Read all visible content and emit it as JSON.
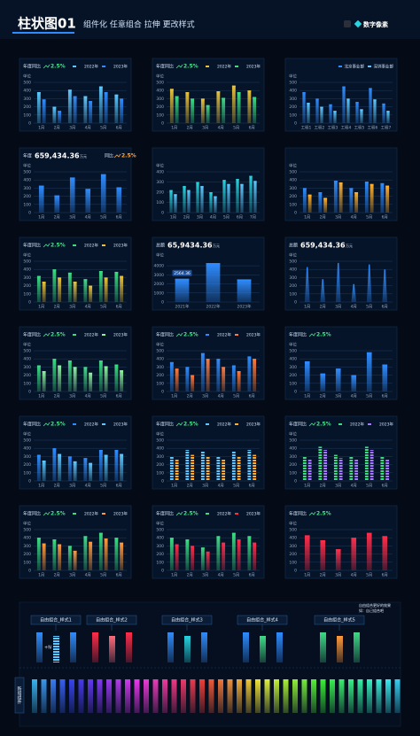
{
  "header": {
    "title": "柱状图01",
    "subtitle": "组件化 任意组合 拉伸 更改样式",
    "brand": "数字像素"
  },
  "chart_data": [
    {
      "type": "bar",
      "stat_label": "年度同比",
      "stat_value": "2.5%",
      "y_label": "单位",
      "categories": [
        "1月",
        "2月",
        "3月",
        "4月",
        "5月",
        "6月"
      ],
      "series": [
        {
          "name": "2022年",
          "color": "#5cc8ff",
          "values": [
            380,
            200,
            410,
            330,
            450,
            350
          ]
        },
        {
          "name": "2023年",
          "color": "#2f8cff",
          "values": [
            290,
            150,
            330,
            270,
            380,
            300
          ]
        }
      ],
      "ylim": [
        0,
        500
      ],
      "yticks": [
        0,
        100,
        200,
        300,
        400,
        500
      ]
    },
    {
      "type": "bar",
      "stat_label": "年度同比",
      "stat_value": "2.5%",
      "y_label": "单位",
      "categories": [
        "1月",
        "2月",
        "3月",
        "4月",
        "5月",
        "6月"
      ],
      "series": [
        {
          "name": "2022年",
          "color": "#e8c33a",
          "values": [
            420,
            380,
            300,
            390,
            460,
            400
          ]
        },
        {
          "name": "2023年",
          "color": "#3ddc84",
          "values": [
            330,
            300,
            220,
            310,
            380,
            320
          ]
        }
      ],
      "ylim": [
        0,
        500
      ],
      "yticks": [
        0,
        100,
        200,
        300,
        400,
        500
      ]
    },
    {
      "type": "bar",
      "y_label": "单位",
      "categories": [
        "工程1",
        "工程2",
        "工程3",
        "工程4",
        "工程5",
        "工程6",
        "工程7"
      ],
      "series": [
        {
          "name": "北京事业部",
          "color": "#2f8cff",
          "values": [
            380,
            300,
            230,
            450,
            260,
            430,
            240
          ]
        },
        {
          "name": "深圳事业部",
          "color": "#5cc8ff",
          "values": [
            250,
            200,
            150,
            300,
            170,
            290,
            150
          ]
        }
      ],
      "ylim": [
        0,
        500
      ],
      "yticks": [
        0,
        100,
        200,
        300,
        400,
        500
      ]
    },
    {
      "type": "bar",
      "stat_label": "年度",
      "total": "659,434.36",
      "unit": "万元",
      "change_label": "同比",
      "change": "2.5%",
      "y_label": "单位",
      "categories": [
        "1月",
        "2月",
        "3月",
        "4月",
        "5月",
        "6月"
      ],
      "series": [
        {
          "color": "#2f8cff",
          "values": [
            330,
            210,
            430,
            290,
            470,
            310
          ]
        }
      ],
      "ylim": [
        0,
        500
      ],
      "yticks": [
        0,
        100,
        200,
        300,
        400,
        500
      ]
    },
    {
      "type": "bar",
      "y_label": "单位",
      "categories": [
        "1月",
        "2月",
        "3月",
        "4月",
        "5月",
        "6月",
        "7月"
      ],
      "series": [
        {
          "color": "#27d4e0",
          "values": [
            220,
            260,
            300,
            200,
            320,
            330,
            360
          ]
        },
        {
          "color": "#5cc8ff",
          "values": [
            180,
            220,
            260,
            160,
            280,
            280,
            310
          ]
        }
      ],
      "ylim": [
        0,
        400
      ],
      "yticks": [
        0,
        100,
        200,
        300,
        400
      ]
    },
    {
      "type": "bar",
      "y_label": "单位",
      "categories": [
        "1月",
        "2月",
        "3月",
        "4月",
        "5月",
        "6月"
      ],
      "series": [
        {
          "color": "#2f8cff",
          "values": [
            300,
            250,
            390,
            300,
            380,
            360
          ]
        },
        {
          "color": "#ffb02e",
          "values": [
            220,
            180,
            370,
            250,
            350,
            330
          ]
        }
      ],
      "ylim": [
        0,
        500
      ],
      "yticks": [
        0,
        100,
        200,
        300,
        400,
        500
      ]
    },
    {
      "type": "bar",
      "stat_label": "年度同比",
      "stat_value": "2.5%",
      "y_label": "单位",
      "categories": [
        "1月",
        "2月",
        "3月",
        "4月",
        "5月",
        "6月"
      ],
      "series": [
        {
          "name": "2022年",
          "color": "#3ddc84",
          "values": [
            320,
            400,
            360,
            280,
            380,
            370
          ]
        },
        {
          "name": "2023年",
          "color": "#e8c33a",
          "values": [
            250,
            300,
            250,
            200,
            300,
            320
          ]
        }
      ],
      "ylim": [
        0,
        500
      ],
      "yticks": [
        0,
        100,
        200,
        300,
        400,
        500
      ]
    },
    {
      "type": "bar",
      "style": "block",
      "stat_label": "总额",
      "total": "65,9434.36",
      "unit": "万元",
      "y_label": "单位",
      "annotation": "2564.36",
      "categories": [
        "2021年",
        "2022年",
        "2023年"
      ],
      "series": [
        {
          "color": "#2f8cff",
          "values": [
            2564.36,
            4300,
            2500
          ]
        }
      ],
      "ylim": [
        0,
        4500
      ],
      "yticks": [
        0,
        1000,
        2000,
        3000,
        4000
      ]
    },
    {
      "type": "bar",
      "style": "cone",
      "stat_label": "总额",
      "total": "659,434.36",
      "unit": "万元",
      "y_label": "单位",
      "categories": [
        "1月",
        "2月",
        "3月",
        "4月",
        "5月",
        "6月"
      ],
      "series": [
        {
          "color": "#2f8cff",
          "values": [
            430,
            280,
            480,
            220,
            460,
            400
          ]
        }
      ],
      "ylim": [
        0,
        500
      ],
      "yticks": [
        0,
        100,
        200,
        300,
        400,
        500
      ]
    },
    {
      "type": "bar",
      "stat_label": "年度同比",
      "stat_value": "2.5%",
      "y_label": "单位",
      "categories": [
        "1月",
        "2月",
        "3月",
        "4月",
        "5月",
        "6月"
      ],
      "series": [
        {
          "name": "2022年",
          "color": "#3ddc84",
          "values": [
            320,
            400,
            380,
            300,
            380,
            330
          ]
        },
        {
          "name": "2023年",
          "color": "#8ef0a0",
          "values": [
            250,
            320,
            300,
            230,
            310,
            260
          ]
        }
      ],
      "ylim": [
        0,
        500
      ],
      "yticks": [
        0,
        100,
        200,
        300,
        400,
        500
      ]
    },
    {
      "type": "bar",
      "stat_label": "年度同比",
      "stat_value": "2.5%",
      "y_label": "单位",
      "categories": [
        "1月",
        "2月",
        "3月",
        "4月",
        "5月",
        "6月"
      ],
      "series": [
        {
          "name": "2022年",
          "color": "#2f8cff",
          "values": [
            360,
            300,
            470,
            400,
            320,
            430
          ]
        },
        {
          "name": "2023年",
          "color": "#ff7a3c",
          "values": [
            280,
            200,
            400,
            300,
            250,
            400
          ]
        }
      ],
      "ylim": [
        0,
        500
      ],
      "yticks": [
        0,
        100,
        200,
        300,
        400,
        500
      ]
    },
    {
      "type": "bar",
      "stat_label": "年度同比",
      "stat_value": "2.5%",
      "y_label": "单位",
      "categories": [
        "1月",
        "2月",
        "3月",
        "4月",
        "5月",
        "6月"
      ],
      "series": [
        {
          "color": "#2f8cff",
          "values": [
            370,
            220,
            280,
            200,
            480,
            330
          ]
        }
      ],
      "ylim": [
        0,
        500
      ],
      "yticks": [
        0,
        100,
        200,
        300,
        400,
        500
      ]
    },
    {
      "type": "bar",
      "stat_label": "年度同比",
      "stat_value": "2.5%",
      "y_label": "单位",
      "categories": [
        "1月",
        "2月",
        "3月",
        "4月",
        "5月",
        "6月"
      ],
      "series": [
        {
          "name": "2022年",
          "color": "#2f8cff",
          "values": [
            320,
            400,
            300,
            280,
            380,
            380
          ]
        },
        {
          "name": "2023年",
          "color": "#5cc8ff",
          "values": [
            250,
            330,
            240,
            220,
            320,
            330
          ]
        }
      ],
      "ylim": [
        0,
        500
      ],
      "yticks": [
        0,
        100,
        200,
        300,
        400,
        500
      ]
    },
    {
      "type": "bar",
      "style": "segmented",
      "stat_label": "年度同比",
      "stat_value": "2.5%",
      "y_label": "单位",
      "categories": [
        "1月",
        "2月",
        "3月",
        "4月",
        "5月",
        "6月"
      ],
      "series": [
        {
          "name": "2022年",
          "color": "#5cc8ff",
          "values": [
            300,
            380,
            360,
            300,
            360,
            380
          ]
        },
        {
          "name": "2023年",
          "color": "#ffb02e",
          "values": [
            260,
            320,
            300,
            260,
            300,
            320
          ]
        }
      ],
      "ylim": [
        0,
        500
      ],
      "yticks": [
        0,
        100,
        200,
        300,
        400,
        500
      ]
    },
    {
      "type": "bar",
      "style": "segmented",
      "stat_label": "年度同比",
      "stat_value": "2.5%",
      "y_label": "单位",
      "categories": [
        "1月",
        "2月",
        "3月",
        "4月",
        "5月",
        "6月"
      ],
      "series": [
        {
          "name": "2022年",
          "color": "#3ddc84",
          "values": [
            300,
            420,
            320,
            300,
            420,
            300
          ]
        },
        {
          "name": "2023年",
          "color": "#a77bff",
          "values": [
            260,
            380,
            280,
            260,
            380,
            260
          ]
        }
      ],
      "ylim": [
        0,
        500
      ],
      "yticks": [
        0,
        100,
        200,
        300,
        400,
        500
      ]
    },
    {
      "type": "bar",
      "stat_label": "年度同比",
      "stat_value": "2.5%",
      "y_label": "单位",
      "categories": [
        "1月",
        "2月",
        "3月",
        "4月",
        "5月",
        "6月"
      ],
      "series": [
        {
          "name": "2022年",
          "color": "#3ddc84",
          "values": [
            400,
            380,
            300,
            420,
            460,
            400
          ]
        },
        {
          "name": "2023年",
          "color": "#ff9a3c",
          "values": [
            330,
            320,
            240,
            350,
            390,
            340
          ]
        }
      ],
      "ylim": [
        0,
        500
      ],
      "yticks": [
        0,
        100,
        200,
        300,
        400,
        500
      ]
    },
    {
      "type": "bar",
      "stat_label": "年度同比",
      "stat_value": "2.5%",
      "y_label": "单位",
      "categories": [
        "1月",
        "2月",
        "3月",
        "4月",
        "5月",
        "6月"
      ],
      "series": [
        {
          "name": "2022年",
          "color": "#3ddc84",
          "values": [
            400,
            380,
            280,
            420,
            460,
            420
          ]
        },
        {
          "name": "2023年",
          "color": "#ff2d4a",
          "values": [
            320,
            300,
            230,
            340,
            380,
            340
          ]
        }
      ],
      "ylim": [
        0,
        500
      ],
      "yticks": [
        0,
        100,
        200,
        300,
        400,
        500
      ]
    },
    {
      "type": "bar",
      "stat_label": "年度同比",
      "stat_value": "2.5%",
      "y_label": "单位",
      "categories": [
        "1月",
        "2月",
        "3月",
        "4月",
        "5月",
        "6月"
      ],
      "series": [
        {
          "color": "#ff2d4a",
          "values": [
            430,
            370,
            260,
            400,
            460,
            420
          ]
        }
      ],
      "ylim": [
        0,
        500
      ],
      "yticks": [
        0,
        100,
        200,
        300,
        400,
        500
      ]
    }
  ],
  "footer": {
    "styles": [
      "自由组合_样式1",
      "自由组合_样式2",
      "自由组合_样式3",
      "自由组合_样式4",
      "自由组合_样式5"
    ],
    "combo": "+N",
    "note": [
      "自由组合更好的效果",
      "如：自己组合吧"
    ],
    "side_label": "新增组件"
  }
}
